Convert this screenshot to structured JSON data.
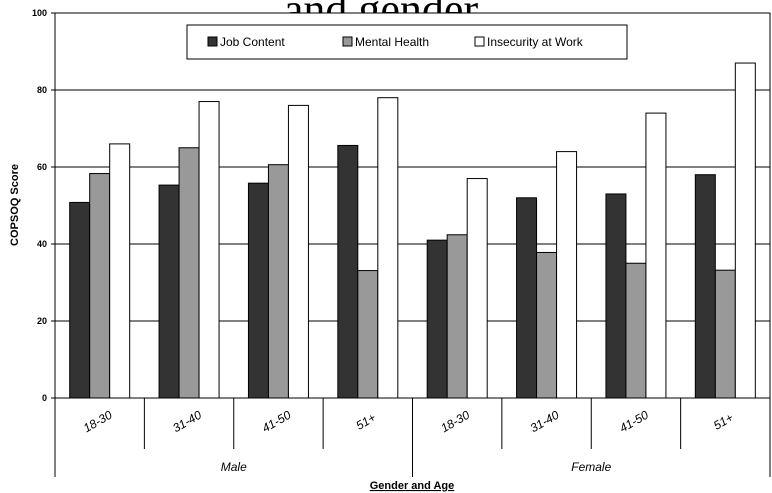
{
  "chart_data": {
    "type": "bar",
    "title": "and gender",
    "xlabel": "Gender and Age",
    "ylabel": "COPSOQ Score",
    "ylim": [
      0,
      100
    ],
    "yticks": [
      0,
      20,
      40,
      60,
      80,
      100
    ],
    "grid": true,
    "legend_position": "top-center",
    "groups": [
      "Male",
      "Female"
    ],
    "categories": [
      "18-30",
      "31-40",
      "41-50",
      "51+",
      "18-30",
      "31-40",
      "41-50",
      "51+"
    ],
    "series": [
      {
        "name": "Job  Content",
        "color": "#333333",
        "values": [
          50.8,
          55.3,
          55.8,
          65.6,
          41.0,
          52.0,
          53.0,
          58.0
        ]
      },
      {
        "name": "Mental Health",
        "color": "#999999",
        "values": [
          58.3,
          65.0,
          60.6,
          33.1,
          42.4,
          37.8,
          35.0,
          33.2
        ]
      },
      {
        "name": "Insecurity at Work",
        "color": "#ffffff",
        "values": [
          66.0,
          77.0,
          76.0,
          78.0,
          57.0,
          64.0,
          74.0,
          87.0
        ]
      }
    ]
  }
}
